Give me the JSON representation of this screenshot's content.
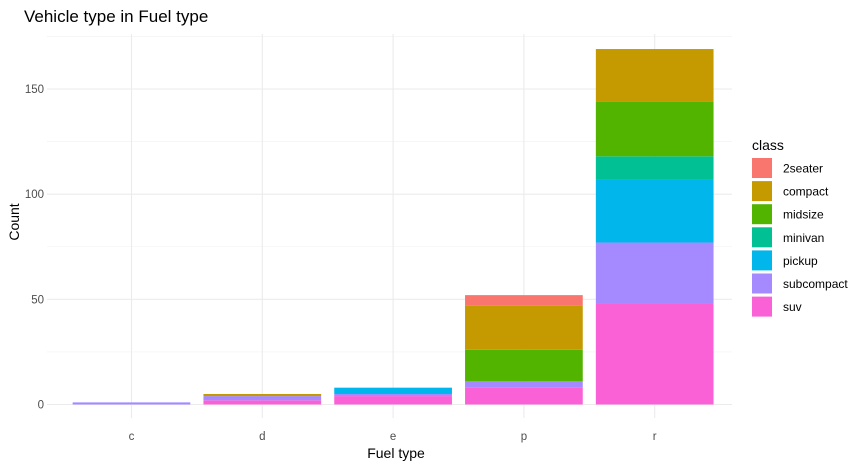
{
  "chart_data": {
    "type": "bar",
    "stacked": true,
    "title": "Vehicle type in Fuel type",
    "xlabel": "Fuel type",
    "ylabel": "Count",
    "categories": [
      "c",
      "d",
      "e",
      "p",
      "r"
    ],
    "ylim": [
      0,
      175
    ],
    "yticks": [
      0,
      50,
      100,
      150
    ],
    "grid": true,
    "legend": {
      "title": "class",
      "position": "right"
    },
    "series": [
      {
        "name": "2seater",
        "color": "#F8766D",
        "values": [
          0,
          0,
          0,
          5,
          0
        ]
      },
      {
        "name": "compact",
        "color": "#C49A00",
        "values": [
          0,
          1,
          0,
          21,
          25
        ]
      },
      {
        "name": "midsize",
        "color": "#53B400",
        "values": [
          0,
          0,
          0,
          15,
          26
        ]
      },
      {
        "name": "minivan",
        "color": "#00C094",
        "values": [
          0,
          0,
          0,
          0,
          11
        ]
      },
      {
        "name": "pickup",
        "color": "#00B6EB",
        "values": [
          0,
          0,
          3,
          0,
          30
        ]
      },
      {
        "name": "subcompact",
        "color": "#A58AFF",
        "values": [
          1,
          2,
          1,
          3,
          29
        ]
      },
      {
        "name": "suv",
        "color": "#FB61D7",
        "values": [
          0,
          2,
          4,
          8,
          48
        ]
      }
    ]
  }
}
